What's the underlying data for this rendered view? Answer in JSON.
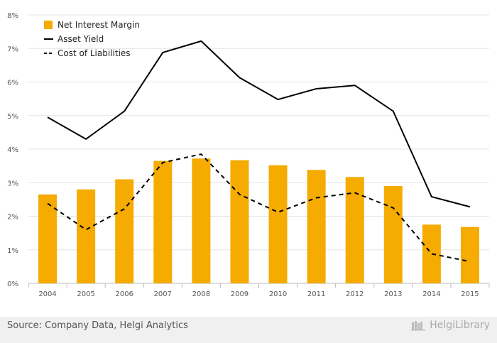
{
  "chart_data": {
    "type": "bar",
    "categories": [
      "2004",
      "2005",
      "2006",
      "2007",
      "2008",
      "2009",
      "2010",
      "2011",
      "2012",
      "2013",
      "2014",
      "2015"
    ],
    "series": [
      {
        "name": "Net Interest Margin",
        "kind": "bar",
        "color": "#f5ab00",
        "values": [
          2.65,
          2.8,
          3.1,
          3.65,
          3.72,
          3.67,
          3.52,
          3.38,
          3.17,
          2.9,
          1.75,
          1.68
        ]
      },
      {
        "name": "Asset Yield",
        "kind": "line",
        "dash": "solid",
        "color": "#000000",
        "values": [
          4.95,
          4.3,
          5.13,
          6.88,
          7.22,
          6.13,
          5.48,
          5.8,
          5.9,
          5.13,
          2.58,
          2.28
        ]
      },
      {
        "name": "Cost of Liabilities",
        "kind": "line",
        "dash": "dashed",
        "color": "#000000",
        "values": [
          2.38,
          1.6,
          2.22,
          3.6,
          3.85,
          2.65,
          2.12,
          2.55,
          2.7,
          2.25,
          0.88,
          0.65
        ]
      }
    ],
    "yticks": [
      "0%",
      "1%",
      "2%",
      "3%",
      "4%",
      "5%",
      "6%",
      "7%",
      "8%"
    ],
    "ylim": [
      0,
      8
    ],
    "grid": true,
    "legend_position": "top-left"
  },
  "footer": {
    "source": "Source: Company Data, Helgi Analytics",
    "brand": "HelgiLibrary"
  }
}
